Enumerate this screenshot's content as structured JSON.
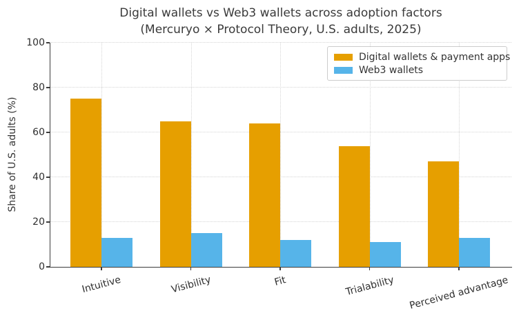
{
  "figure": {
    "title": "Digital wallets vs Web3 wallets across adoption factors",
    "subtitle": "(Mercuryo × Protocol Theory, U.S. adults, 2025)"
  },
  "chart_data": {
    "type": "bar",
    "title": "Digital wallets vs Web3 wallets across adoption factors",
    "subtitle": "(Mercuryo × Protocol Theory, U.S. adults, 2025)",
    "categories": [
      "Intuitive",
      "Visibility",
      "Fit",
      "Trialability",
      "Perceived advantage"
    ],
    "series": [
      {
        "name": "Digital wallets & payment apps",
        "color": "#E69F00",
        "values": [
          75,
          65,
          64,
          54,
          47
        ]
      },
      {
        "name": "Web3 wallets",
        "color": "#56B4E9",
        "values": [
          13,
          15,
          12,
          11,
          13
        ]
      }
    ],
    "xlabel": "",
    "ylabel": "Share of U.S. adults (%)",
    "ylim": [
      0,
      100
    ],
    "yticks": [
      0,
      20,
      40,
      60,
      80,
      100
    ],
    "grid": true,
    "grid_style": "dotted",
    "legend_position": "upper right",
    "background": "#ffffff",
    "text_color": "#3a3a3a"
  }
}
